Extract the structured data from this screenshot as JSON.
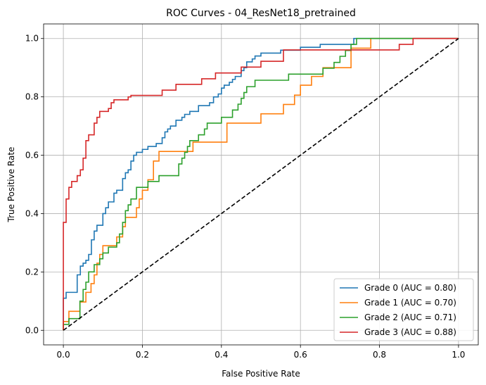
{
  "chart_data": {
    "type": "line",
    "title": "ROC Curves - 04_ResNet18_pretrained",
    "xlabel": "False Positive Rate",
    "ylabel": "True Positive Rate",
    "xlim": [
      -0.05,
      1.05
    ],
    "ylim": [
      -0.05,
      1.05
    ],
    "xticks": [
      0.0,
      0.2,
      0.4,
      0.6,
      0.8,
      1.0
    ],
    "yticks": [
      0.0,
      0.2,
      0.4,
      0.6,
      0.8,
      1.0
    ],
    "xtick_labels": [
      "0.0",
      "0.2",
      "0.4",
      "0.6",
      "0.8",
      "1.0"
    ],
    "ytick_labels": [
      "0.0",
      "0.2",
      "0.4",
      "0.6",
      "0.8",
      "1.0"
    ],
    "grid": true,
    "legend_position": "lower-right",
    "diagonal": {
      "name": "chance",
      "color": "#000000",
      "style": "dashed",
      "points": [
        [
          0,
          0
        ],
        [
          1,
          1
        ]
      ]
    },
    "series": [
      {
        "name": "Grade 0 (AUC = 0.80)",
        "color": "#1f77b4",
        "points": [
          [
            0,
            0
          ],
          [
            0,
            0.11
          ],
          [
            0.007,
            0.11
          ],
          [
            0.007,
            0.13
          ],
          [
            0.035,
            0.13
          ],
          [
            0.035,
            0.19
          ],
          [
            0.043,
            0.19
          ],
          [
            0.043,
            0.22
          ],
          [
            0.05,
            0.22
          ],
          [
            0.05,
            0.23
          ],
          [
            0.057,
            0.23
          ],
          [
            0.057,
            0.24
          ],
          [
            0.064,
            0.24
          ],
          [
            0.064,
            0.26
          ],
          [
            0.071,
            0.26
          ],
          [
            0.071,
            0.31
          ],
          [
            0.078,
            0.31
          ],
          [
            0.078,
            0.34
          ],
          [
            0.085,
            0.34
          ],
          [
            0.085,
            0.36
          ],
          [
            0.1,
            0.36
          ],
          [
            0.1,
            0.4
          ],
          [
            0.107,
            0.4
          ],
          [
            0.107,
            0.42
          ],
          [
            0.114,
            0.42
          ],
          [
            0.114,
            0.44
          ],
          [
            0.128,
            0.44
          ],
          [
            0.128,
            0.47
          ],
          [
            0.135,
            0.47
          ],
          [
            0.135,
            0.48
          ],
          [
            0.15,
            0.48
          ],
          [
            0.15,
            0.52
          ],
          [
            0.157,
            0.52
          ],
          [
            0.157,
            0.54
          ],
          [
            0.164,
            0.54
          ],
          [
            0.164,
            0.55
          ],
          [
            0.171,
            0.55
          ],
          [
            0.171,
            0.58
          ],
          [
            0.178,
            0.58
          ],
          [
            0.178,
            0.6
          ],
          [
            0.185,
            0.6
          ],
          [
            0.185,
            0.61
          ],
          [
            0.2,
            0.61
          ],
          [
            0.2,
            0.62
          ],
          [
            0.214,
            0.62
          ],
          [
            0.214,
            0.63
          ],
          [
            0.235,
            0.63
          ],
          [
            0.235,
            0.64
          ],
          [
            0.25,
            0.64
          ],
          [
            0.25,
            0.66
          ],
          [
            0.257,
            0.66
          ],
          [
            0.257,
            0.68
          ],
          [
            0.264,
            0.68
          ],
          [
            0.264,
            0.69
          ],
          [
            0.271,
            0.69
          ],
          [
            0.271,
            0.7
          ],
          [
            0.285,
            0.7
          ],
          [
            0.285,
            0.72
          ],
          [
            0.3,
            0.72
          ],
          [
            0.3,
            0.73
          ],
          [
            0.307,
            0.73
          ],
          [
            0.307,
            0.74
          ],
          [
            0.32,
            0.74
          ],
          [
            0.32,
            0.75
          ],
          [
            0.342,
            0.75
          ],
          [
            0.342,
            0.77
          ],
          [
            0.37,
            0.77
          ],
          [
            0.37,
            0.78
          ],
          [
            0.38,
            0.78
          ],
          [
            0.38,
            0.8
          ],
          [
            0.392,
            0.8
          ],
          [
            0.392,
            0.81
          ],
          [
            0.4,
            0.81
          ],
          [
            0.4,
            0.83
          ],
          [
            0.407,
            0.83
          ],
          [
            0.407,
            0.84
          ],
          [
            0.42,
            0.84
          ],
          [
            0.42,
            0.85
          ],
          [
            0.428,
            0.85
          ],
          [
            0.428,
            0.86
          ],
          [
            0.435,
            0.86
          ],
          [
            0.435,
            0.87
          ],
          [
            0.45,
            0.87
          ],
          [
            0.45,
            0.89
          ],
          [
            0.457,
            0.89
          ],
          [
            0.457,
            0.9
          ],
          [
            0.464,
            0.9
          ],
          [
            0.464,
            0.92
          ],
          [
            0.478,
            0.92
          ],
          [
            0.478,
            0.93
          ],
          [
            0.485,
            0.93
          ],
          [
            0.485,
            0.94
          ],
          [
            0.5,
            0.94
          ],
          [
            0.5,
            0.95
          ],
          [
            0.55,
            0.95
          ],
          [
            0.55,
            0.96
          ],
          [
            0.6,
            0.96
          ],
          [
            0.6,
            0.97
          ],
          [
            0.65,
            0.97
          ],
          [
            0.65,
            0.98
          ],
          [
            0.735,
            0.98
          ],
          [
            0.735,
            1.0
          ],
          [
            1,
            1
          ]
        ]
      },
      {
        "name": "Grade 1 (AUC = 0.70)",
        "color": "#ff7f0e",
        "points": [
          [
            0,
            0
          ],
          [
            0,
            0.03
          ],
          [
            0.014,
            0.03
          ],
          [
            0.014,
            0.065
          ],
          [
            0.042,
            0.065
          ],
          [
            0.042,
            0.097
          ],
          [
            0.057,
            0.097
          ],
          [
            0.057,
            0.13
          ],
          [
            0.07,
            0.13
          ],
          [
            0.07,
            0.16
          ],
          [
            0.078,
            0.16
          ],
          [
            0.078,
            0.19
          ],
          [
            0.085,
            0.19
          ],
          [
            0.085,
            0.23
          ],
          [
            0.092,
            0.23
          ],
          [
            0.092,
            0.26
          ],
          [
            0.1,
            0.26
          ],
          [
            0.1,
            0.29
          ],
          [
            0.135,
            0.29
          ],
          [
            0.135,
            0.32
          ],
          [
            0.15,
            0.32
          ],
          [
            0.15,
            0.355
          ],
          [
            0.157,
            0.355
          ],
          [
            0.157,
            0.387
          ],
          [
            0.185,
            0.387
          ],
          [
            0.185,
            0.42
          ],
          [
            0.192,
            0.42
          ],
          [
            0.192,
            0.45
          ],
          [
            0.2,
            0.45
          ],
          [
            0.2,
            0.48
          ],
          [
            0.214,
            0.48
          ],
          [
            0.214,
            0.516
          ],
          [
            0.228,
            0.516
          ],
          [
            0.228,
            0.58
          ],
          [
            0.242,
            0.58
          ],
          [
            0.242,
            0.613
          ],
          [
            0.328,
            0.613
          ],
          [
            0.328,
            0.645
          ],
          [
            0.414,
            0.645
          ],
          [
            0.414,
            0.71
          ],
          [
            0.5,
            0.71
          ],
          [
            0.5,
            0.742
          ],
          [
            0.557,
            0.742
          ],
          [
            0.557,
            0.774
          ],
          [
            0.585,
            0.774
          ],
          [
            0.585,
            0.806
          ],
          [
            0.6,
            0.806
          ],
          [
            0.6,
            0.84
          ],
          [
            0.628,
            0.84
          ],
          [
            0.628,
            0.87
          ],
          [
            0.657,
            0.87
          ],
          [
            0.657,
            0.9
          ],
          [
            0.728,
            0.9
          ],
          [
            0.728,
            0.935
          ],
          [
            0.728,
            0.967
          ],
          [
            0.778,
            0.967
          ],
          [
            0.778,
            1.0
          ],
          [
            1,
            1
          ]
        ]
      },
      {
        "name": "Grade 2 (AUC = 0.71)",
        "color": "#2ca02c",
        "points": [
          [
            0,
            0
          ],
          [
            0,
            0.02
          ],
          [
            0.014,
            0.02
          ],
          [
            0.014,
            0.04
          ],
          [
            0.042,
            0.04
          ],
          [
            0.042,
            0.1
          ],
          [
            0.05,
            0.1
          ],
          [
            0.05,
            0.14
          ],
          [
            0.057,
            0.14
          ],
          [
            0.057,
            0.165
          ],
          [
            0.064,
            0.165
          ],
          [
            0.064,
            0.2
          ],
          [
            0.078,
            0.2
          ],
          [
            0.078,
            0.225
          ],
          [
            0.092,
            0.225
          ],
          [
            0.092,
            0.245
          ],
          [
            0.1,
            0.245
          ],
          [
            0.1,
            0.265
          ],
          [
            0.114,
            0.265
          ],
          [
            0.114,
            0.285
          ],
          [
            0.135,
            0.285
          ],
          [
            0.135,
            0.3
          ],
          [
            0.142,
            0.3
          ],
          [
            0.142,
            0.33
          ],
          [
            0.15,
            0.33
          ],
          [
            0.15,
            0.37
          ],
          [
            0.157,
            0.37
          ],
          [
            0.157,
            0.41
          ],
          [
            0.164,
            0.41
          ],
          [
            0.164,
            0.43
          ],
          [
            0.171,
            0.43
          ],
          [
            0.171,
            0.45
          ],
          [
            0.185,
            0.45
          ],
          [
            0.185,
            0.49
          ],
          [
            0.214,
            0.49
          ],
          [
            0.214,
            0.51
          ],
          [
            0.242,
            0.51
          ],
          [
            0.242,
            0.53
          ],
          [
            0.292,
            0.53
          ],
          [
            0.292,
            0.57
          ],
          [
            0.3,
            0.57
          ],
          [
            0.3,
            0.59
          ],
          [
            0.307,
            0.59
          ],
          [
            0.307,
            0.61
          ],
          [
            0.314,
            0.61
          ],
          [
            0.314,
            0.63
          ],
          [
            0.32,
            0.63
          ],
          [
            0.32,
            0.65
          ],
          [
            0.342,
            0.65
          ],
          [
            0.342,
            0.67
          ],
          [
            0.357,
            0.67
          ],
          [
            0.357,
            0.69
          ],
          [
            0.364,
            0.69
          ],
          [
            0.364,
            0.71
          ],
          [
            0.4,
            0.71
          ],
          [
            0.4,
            0.73
          ],
          [
            0.428,
            0.73
          ],
          [
            0.428,
            0.755
          ],
          [
            0.442,
            0.755
          ],
          [
            0.442,
            0.775
          ],
          [
            0.45,
            0.775
          ],
          [
            0.45,
            0.795
          ],
          [
            0.457,
            0.795
          ],
          [
            0.457,
            0.815
          ],
          [
            0.464,
            0.815
          ],
          [
            0.464,
            0.835
          ],
          [
            0.485,
            0.835
          ],
          [
            0.485,
            0.857
          ],
          [
            0.57,
            0.857
          ],
          [
            0.57,
            0.878
          ],
          [
            0.657,
            0.878
          ],
          [
            0.657,
            0.898
          ],
          [
            0.685,
            0.898
          ],
          [
            0.685,
            0.918
          ],
          [
            0.7,
            0.918
          ],
          [
            0.7,
            0.939
          ],
          [
            0.714,
            0.939
          ],
          [
            0.714,
            0.959
          ],
          [
            0.728,
            0.959
          ],
          [
            0.728,
            0.98
          ],
          [
            0.742,
            0.98
          ],
          [
            0.742,
            1.0
          ],
          [
            1,
            1
          ]
        ]
      },
      {
        "name": "Grade 3 (AUC = 0.88)",
        "color": "#d62728",
        "points": [
          [
            0,
            0
          ],
          [
            0,
            0.37
          ],
          [
            0.007,
            0.37
          ],
          [
            0.007,
            0.45
          ],
          [
            0.014,
            0.45
          ],
          [
            0.014,
            0.49
          ],
          [
            0.021,
            0.49
          ],
          [
            0.021,
            0.51
          ],
          [
            0.035,
            0.51
          ],
          [
            0.035,
            0.53
          ],
          [
            0.043,
            0.53
          ],
          [
            0.043,
            0.55
          ],
          [
            0.05,
            0.55
          ],
          [
            0.05,
            0.59
          ],
          [
            0.057,
            0.59
          ],
          [
            0.057,
            0.65
          ],
          [
            0.064,
            0.65
          ],
          [
            0.064,
            0.67
          ],
          [
            0.078,
            0.67
          ],
          [
            0.078,
            0.71
          ],
          [
            0.085,
            0.71
          ],
          [
            0.085,
            0.73
          ],
          [
            0.092,
            0.73
          ],
          [
            0.092,
            0.75
          ],
          [
            0.114,
            0.75
          ],
          [
            0.114,
            0.76
          ],
          [
            0.121,
            0.76
          ],
          [
            0.121,
            0.78
          ],
          [
            0.128,
            0.78
          ],
          [
            0.128,
            0.79
          ],
          [
            0.164,
            0.79
          ],
          [
            0.164,
            0.8
          ],
          [
            0.171,
            0.8
          ],
          [
            0.171,
            0.805
          ],
          [
            0.25,
            0.805
          ],
          [
            0.25,
            0.823
          ],
          [
            0.285,
            0.823
          ],
          [
            0.285,
            0.843
          ],
          [
            0.35,
            0.843
          ],
          [
            0.35,
            0.862
          ],
          [
            0.385,
            0.862
          ],
          [
            0.385,
            0.882
          ],
          [
            0.45,
            0.882
          ],
          [
            0.45,
            0.902
          ],
          [
            0.5,
            0.902
          ],
          [
            0.5,
            0.922
          ],
          [
            0.557,
            0.922
          ],
          [
            0.557,
            0.961
          ],
          [
            0.85,
            0.961
          ],
          [
            0.85,
            0.98
          ],
          [
            0.885,
            0.98
          ],
          [
            0.885,
            1.0
          ],
          [
            1,
            1
          ]
        ]
      }
    ]
  }
}
